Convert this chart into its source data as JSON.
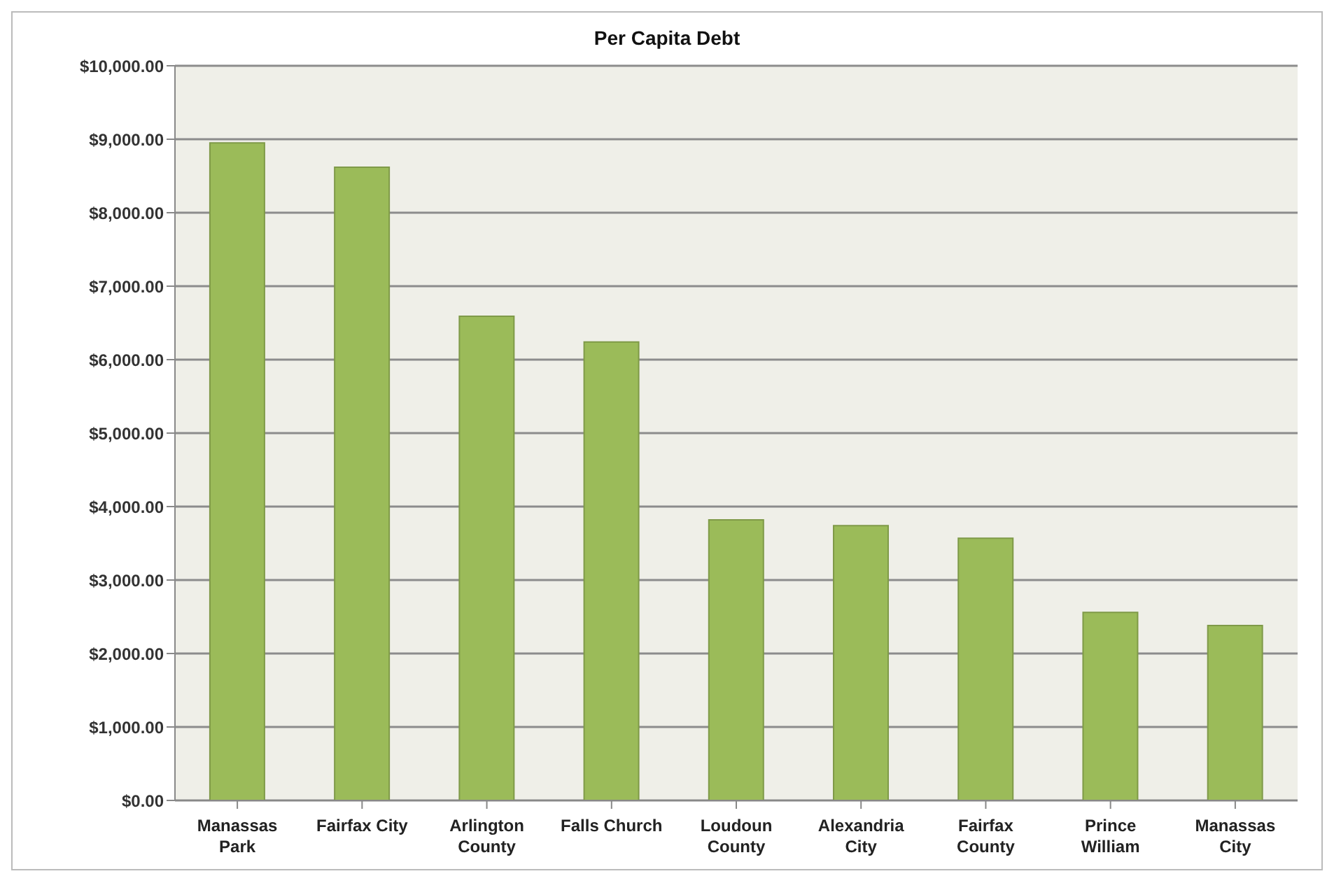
{
  "chart_data": {
    "type": "bar",
    "title": "Per Capita Debt",
    "categories": [
      "Manassas Park",
      "Fairfax City",
      "Arlington County",
      "Falls Church",
      "Loudoun County",
      "Alexandria City",
      "Fairfax County",
      "Prince William",
      "Manassas City"
    ],
    "values": [
      8950,
      8620,
      6590,
      6240,
      3820,
      3740,
      3570,
      2560,
      2380
    ],
    "color": "#9bbb59",
    "ylim": [
      0,
      10000
    ],
    "yticks": [
      {
        "value": 0,
        "label": "$0.00"
      },
      {
        "value": 1000,
        "label": "$1,000.00"
      },
      {
        "value": 2000,
        "label": "$2,000.00"
      },
      {
        "value": 3000,
        "label": "$3,000.00"
      },
      {
        "value": 4000,
        "label": "$4,000.00"
      },
      {
        "value": 5000,
        "label": "$5,000.00"
      },
      {
        "value": 6000,
        "label": "$6,000.00"
      },
      {
        "value": 7000,
        "label": "$7,000.00"
      },
      {
        "value": 8000,
        "label": "$8,000.00"
      },
      {
        "value": 9000,
        "label": "$9,000.00"
      },
      {
        "value": 10000,
        "label": "$10,000.00"
      }
    ],
    "grid": "y"
  }
}
